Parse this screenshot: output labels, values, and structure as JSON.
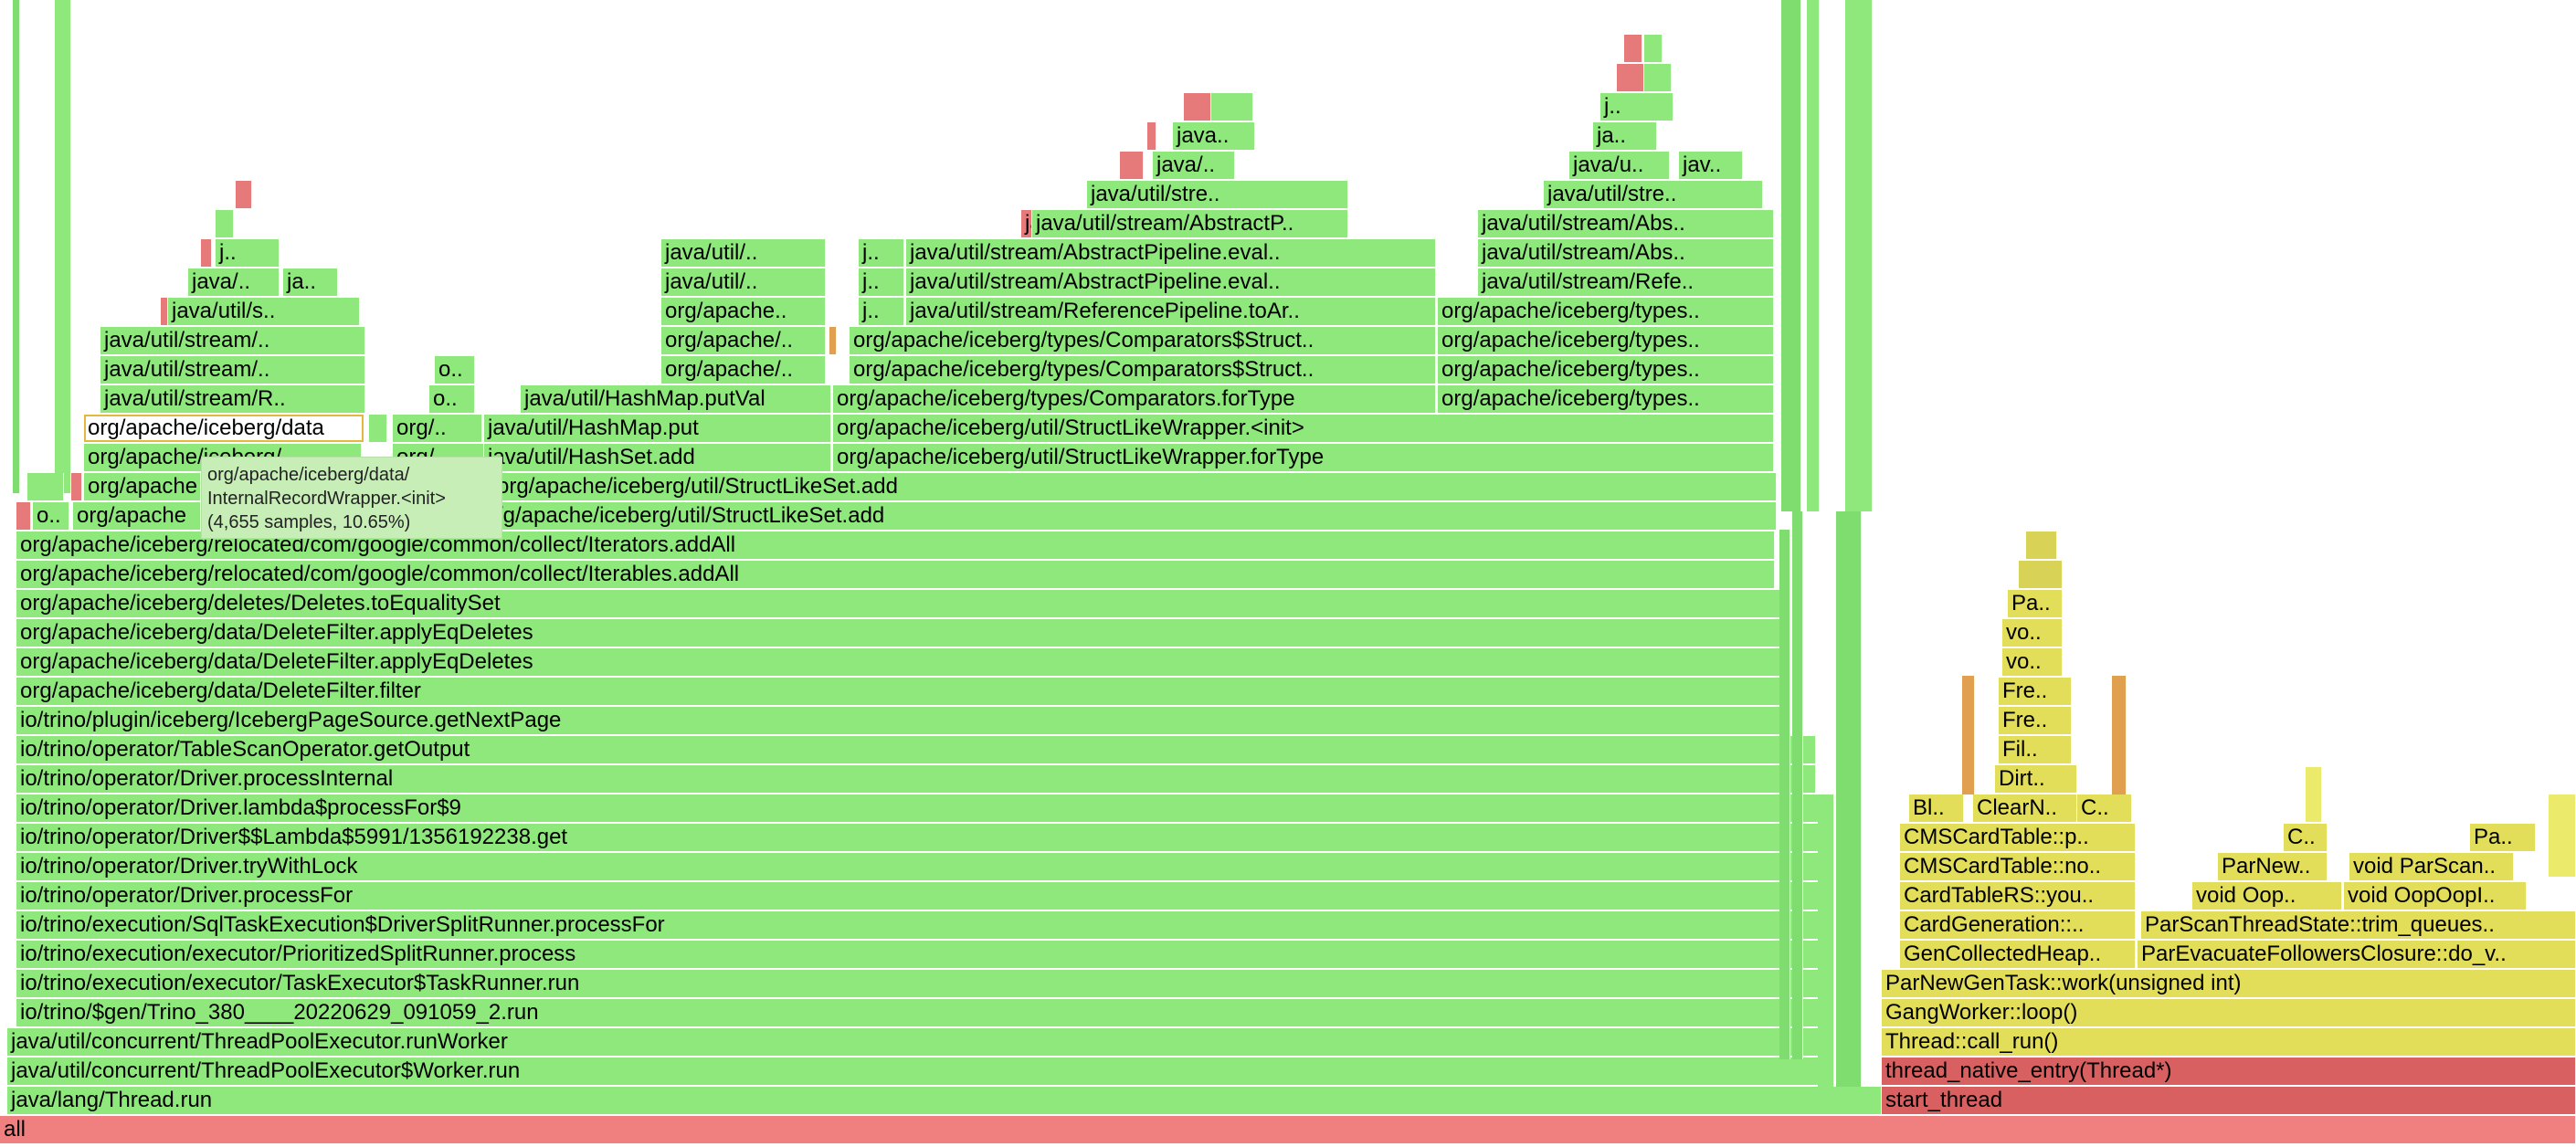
{
  "root": "all",
  "thread_stack": [
    "java/lang/Thread.run",
    "java/util/concurrent/ThreadPoolExecutor$Worker.run",
    "java/util/concurrent/ThreadPoolExecutor.runWorker",
    "io/trino/$gen/Trino_380____20220629_091059_2.run",
    "io/trino/execution/executor/TaskExecutor$TaskRunner.run",
    "io/trino/execution/executor/PrioritizedSplitRunner.process",
    "io/trino/execution/SqlTaskExecution$DriverSplitRunner.processFor",
    "io/trino/operator/Driver.processFor",
    "io/trino/operator/Driver.tryWithLock",
    "io/trino/operator/Driver$$Lambda$5991/1356192238.get",
    "io/trino/operator/Driver.lambda$processFor$9",
    "io/trino/operator/Driver.processInternal",
    "io/trino/operator/TableScanOperator.getOutput",
    "io/trino/plugin/iceberg/IcebergPageSource.getNextPage",
    "org/apache/iceberg/data/DeleteFilter.filter",
    "org/apache/iceberg/data/DeleteFilter.applyEqDeletes",
    "org/apache/iceberg/data/DeleteFilter.applyEqDeletes",
    "org/apache/iceberg/deletes/Deletes.toEqualitySet",
    "org/apache/iceberg/relocated/com/google/common/collect/Iterables.addAll",
    "org/apache/iceberg/relocated/com/google/common/collect/Iterators.addAll"
  ],
  "labels": {
    "o_short": "o..",
    "org_apache_short": "org/apache",
    "org_apache_iceberg_data": "org/apache/iceberg/data",
    "org_apache_iceberg_data_trunc": "org/apache/iceberg/",
    "org_trunc": "org/..",
    "org_a_trunc": "org/a..",
    "struct_like_set_add": "org/apache/iceberg/util/StructLikeSet.add",
    "struct_like_set_add_clipped": "/g/apache/iceberg/util/StructLikeSet.add",
    "hashset_add": "java/util/HashSet.add",
    "hashset_add_clipped": "java/util/HashSet.add",
    "hashmap_put": "java/util/HashMap.put",
    "hashmap_putval": "java/util/HashMap.putVal",
    "wrapper_fortype": "org/apache/iceberg/util/StructLikeWrapper.forType",
    "wrapper_init": "org/apache/iceberg/util/StructLikeWrapper.<init>",
    "comparators_fortype": "org/apache/iceberg/types/Comparators.forType",
    "comparators_struct": "org/apache/iceberg/types/Comparators$Struct..",
    "comparators_struct2": "org/apache/iceberg/types/Comparators$Struct..",
    "iceberg_types": "org/apache/iceberg/types..",
    "ref_pipeline_toar": "java/util/stream/ReferencePipeline.toAr..",
    "abs_pipeline_eval": "java/util/stream/AbstractPipeline.eval..",
    "abs_pipeline_eval2": "java/util/stream/AbstractPipeline.eval..",
    "abstract_p": "java/util/stream/AbstractP..",
    "java_util_stre": "java/util/stre..",
    "java_util_stream_R": "java/util/stream/R..",
    "java_util_stream": "java/util/stream/..",
    "java_util_stream2": "java/util/stream/..",
    "java_util_s": "java/util/s..",
    "java_slash": "java/..",
    "ja_short": "ja..",
    "j_short": "j..",
    "java_dotdot": "java..",
    "java_util_slash": "java/util/..",
    "java_util_slash2": "java/util/..",
    "org_apache_dots": "org/apache..",
    "org_apache_slash": "org/apache/..",
    "org_apache_slash2": "org/apache/..",
    "java_util_stream_abs": "java/util/stream/Abs..",
    "java_util_stream_abs2": "java/util/stream/Abs..",
    "java_util_stream_refe": "java/util/stream/Refe..",
    "java_u": "java/u..",
    "jav": "jav..",
    "bl": "Bl..",
    "clearn": "ClearN..",
    "c_short": "C..",
    "dirt": "Dirt..",
    "fil": "Fil..",
    "fre": "Fre..",
    "fre2": "Fre..",
    "vo": "vo..",
    "vo2": "vo..",
    "pa": "Pa..",
    "pa2": "Pa..",
    "c_short2": "C..",
    "cms_card_p": "CMSCardTable::p..",
    "cms_card_no": "CMSCardTable::no..",
    "card_table_rs": "CardTableRS::you..",
    "card_generation": "CardGeneration::..",
    "gen_collected_heap": "GenCollectedHeap..",
    "parnew_gen_task": "ParNewGenTask::work(unsigned int)",
    "gang_worker": "GangWorker::loop()",
    "thread_call_run": "Thread::call_run()",
    "thread_native_entry": "thread_native_entry(Thread*)",
    "start_thread": "start_thread",
    "parnew": "ParNew..",
    "void_oop": "void Oop..",
    "void_oopoopi": "void OopOopI..",
    "void_parscan": "void ParScan..",
    "parscan_trim": "ParScanThreadState::trim_queues..",
    "parevacuate": "ParEvacuateFollowersClosure::do_v.."
  },
  "tooltip": {
    "line1": "org/apache/iceberg/data/",
    "line2": "InternalRecordWrapper.<init>",
    "line3": "(4,655 samples, 10.65%)"
  },
  "colors": {
    "java": "#8ee87c",
    "hot": "#e67a7a",
    "root": "#f08080",
    "native": "#e3de5a",
    "kernel": "#d86060",
    "tooltip_bg": "#c8eeb8"
  }
}
